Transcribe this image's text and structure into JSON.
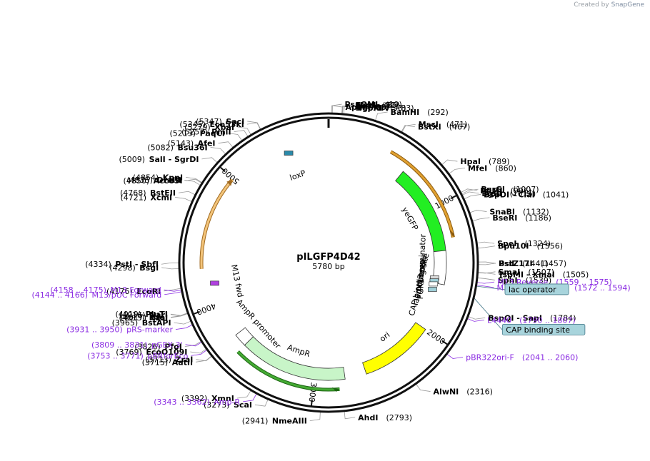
{
  "credit": {
    "prefix": "Created by",
    "brand": "SnapGene"
  },
  "plasmid": {
    "name": "pILGFP4D42",
    "length_label": "5780 bp",
    "length": 5780
  },
  "ticks": [
    {
      "pos": 1000,
      "label": "1000"
    },
    {
      "pos": 2000,
      "label": "2000"
    },
    {
      "pos": 3000,
      "label": "3000"
    },
    {
      "pos": 4000,
      "label": "4000"
    },
    {
      "pos": 5000,
      "label": "5000"
    }
  ],
  "features": [
    {
      "name": "yeGFP",
      "start": 630,
      "end": 1350,
      "strand": 1,
      "ring": "inner",
      "color": "#22ee22"
    },
    {
      "name": "PGK1 terminator",
      "start": 1350,
      "end": 1620,
      "strand": 1,
      "ring": "inner",
      "color": "#ffffff"
    },
    {
      "name": "M13 rev",
      "start": 1559,
      "end": 1575,
      "strand": -1,
      "ring": "inner",
      "color": "#d8d8d8"
    },
    {
      "name": "lac operator",
      "start": 1583,
      "end": 1599,
      "strand": 0,
      "ring": "inner",
      "color": "#9fcfd8"
    },
    {
      "name": "lac promoter",
      "start": 1607,
      "end": 1638,
      "strand": -1,
      "ring": "inner",
      "color": "#ffffff"
    },
    {
      "name": "CAP binding site",
      "start": 1653,
      "end": 1674,
      "strand": 0,
      "ring": "inner",
      "color": "#9fcfd8"
    },
    {
      "name": "ori",
      "start": 2000,
      "end": 2589,
      "strand": -1,
      "ring": "inner",
      "color": "#ffff00"
    },
    {
      "name": "AmpR",
      "start": 2760,
      "end": 3620,
      "strand": -1,
      "ring": "inner",
      "color": "#c8f5c8"
    },
    {
      "name": "AmpR promoter",
      "start": 3620,
      "end": 3725,
      "strand": -1,
      "ring": "inner",
      "color": "#ffffff"
    },
    {
      "name": "M13 fwd",
      "start": 4144,
      "end": 4161,
      "strand": 1,
      "ring": "inner",
      "color": "#b040e0"
    },
    {
      "name": "loxP",
      "start": 5450,
      "end": 5484,
      "strand": 1,
      "ring": "inner",
      "color": "#2a8aaa"
    }
  ],
  "arcs": [
    {
      "start": 470,
      "end": 1260,
      "strand": 1,
      "color": "#e0a030",
      "dark": "#8a5a10"
    },
    {
      "start": 2810,
      "end": 3620,
      "strand": -1,
      "color": "#44aa33",
      "dark": "#1e6614"
    },
    {
      "start": 4290,
      "end": 4990,
      "strand": 1,
      "color": "#f3c47a",
      "dark": "#a06a20"
    }
  ],
  "sites_right": [
    {
      "name": "PspOMI",
      "pos_label": "(19)",
      "side": "left",
      "pos": 19
    },
    {
      "name": "ApaI",
      "pos_label": "(23)",
      "pos": 23
    },
    {
      "name": "EagI",
      "pos_label": "(81)",
      "pos": 81
    },
    {
      "name": "NgoMIV",
      "pos_label": "(83)",
      "pos": 83
    },
    {
      "name": "NaeI",
      "pos_label": "(85)",
      "pos": 85
    },
    {
      "name": "PspXI",
      "pos_label": "(93)",
      "pos": 93
    },
    {
      "name": "BamHI",
      "pos_label": "(292)",
      "pos": 292
    },
    {
      "name": "BstXI",
      "pos_label": "(467)",
      "pos": 467
    },
    {
      "name": "MscI",
      "pos_label": "(471)",
      "pos": 471
    },
    {
      "name": "HpaI",
      "pos_label": "(789)",
      "pos": 789
    },
    {
      "name": "MfeI",
      "pos_label": "(860)",
      "pos": 860
    },
    {
      "name": "PflMI",
      "pos_label": "(996)",
      "pos": 996
    },
    {
      "name": "BsrGI",
      "pos_label": "(1007)",
      "pos": 1007
    },
    {
      "name": "BglII",
      "pos_label": "(1015)",
      "pos": 1015
    },
    {
      "name": "BspDI - ClaI",
      "pos_label": "(1041)",
      "pos": 1041
    },
    {
      "name": "SnaBI",
      "pos_label": "(1132)",
      "pos": 1132
    },
    {
      "name": "BseRI",
      "pos_label": "(1186)",
      "pos": 1186
    },
    {
      "name": "SpeI",
      "pos_label": "(1324)",
      "pos": 1324
    },
    {
      "name": "Bpu10I",
      "pos_label": "(1356)",
      "pos": 1356
    },
    {
      "name": "PsiI",
      "pos_label": "(1441)",
      "pos": 1441
    },
    {
      "name": "BstZ17I",
      "pos_label": "(1457)",
      "pos": 1457
    },
    {
      "name": "TspMI - XmaI",
      "pos_label": "(1505)",
      "pos": 1505
    },
    {
      "name": "SmaI",
      "pos_label": "(1507)",
      "pos": 1507
    },
    {
      "name": "SphI",
      "pos_label": "(1539)",
      "pos": 1539
    },
    {
      "name": "BspQI - SapI",
      "pos_label": "(1784)",
      "pos": 1784
    },
    {
      "name": "AlwNI",
      "pos_label": "(2316)",
      "pos": 2316
    },
    {
      "name": "AhdI",
      "pos_label": "(2793)",
      "pos": 2793
    }
  ],
  "sites_left": [
    {
      "name": "SacI",
      "pos_label": "(5347)",
      "pos": 5347
    },
    {
      "name": "Eco53kI",
      "pos_label": "(5345)",
      "pos": 5345
    },
    {
      "name": "XbaI",
      "pos_label": "(5279)",
      "pos": 5279
    },
    {
      "name": "PmlI",
      "pos_label": "(5257)",
      "pos": 5257
    },
    {
      "name": "PaqCI",
      "pos_label": "(5213)",
      "pos": 5213
    },
    {
      "name": "AfeI",
      "pos_label": "(5143)",
      "pos": 5143
    },
    {
      "name": "Bsu36I",
      "pos_label": "(5082)",
      "pos": 5082
    },
    {
      "name": "SalI - SgrDI",
      "pos_label": "(5009)",
      "pos": 5009
    },
    {
      "name": "KpnI",
      "pos_label": "(4854)",
      "pos": 4854
    },
    {
      "name": "Acc65I",
      "pos_label": "(4850)",
      "pos": 4850
    },
    {
      "name": "DraIII",
      "pos_label": "(4835)",
      "pos": 4835
    },
    {
      "name": "BstEII",
      "pos_label": "(4768)",
      "pos": 4768
    },
    {
      "name": "XcmI",
      "pos_label": "(4721)",
      "pos": 4721
    },
    {
      "name": "PstI - SbfI",
      "pos_label": "(4334)",
      "pos": 4334
    },
    {
      "name": "BsgI",
      "pos_label": "(4298)",
      "pos": 4298
    },
    {
      "name": "EcoRI",
      "pos_label": "(4176)",
      "pos": 4176
    },
    {
      "name": "PluTI",
      "pos_label": "(4019)",
      "pos": 4019
    },
    {
      "name": "SfoI",
      "pos_label": "(4017)",
      "pos": 4017
    },
    {
      "name": "NarI",
      "pos_label": "(4016)",
      "pos": 4016
    },
    {
      "name": "KasI",
      "pos_label": "(4015)",
      "pos": 4015
    },
    {
      "name": "BstAPI",
      "pos_label": "(3965)",
      "pos": 3965
    },
    {
      "name": "PfoI",
      "pos_label": "(3826)",
      "pos": 3826
    },
    {
      "name": "EcoO109I",
      "pos_label": "(3769)",
      "pos": 3769
    },
    {
      "name": "AatII",
      "pos_label": "(3715)",
      "pos": 3715
    },
    {
      "name": "ZraI",
      "pos_label": "(3713)",
      "pos": 3713
    },
    {
      "name": "XmnI",
      "pos_label": "(3392)",
      "pos": 3392
    },
    {
      "name": "ScaI",
      "pos_label": "(3273)",
      "pos": 3273
    },
    {
      "name": "NmeAIII",
      "pos_label": "(2941)",
      "pos": 2941
    }
  ],
  "primers": [
    {
      "name": "M13 Reverse",
      "range": "(1559 .. 1575)",
      "pos": 1567
    },
    {
      "name": "M13/pUC Reverse",
      "range": "(1572 .. 1594)",
      "pos": 1583
    },
    {
      "name": "L4440",
      "range": "(1790 .. 1807)",
      "pos": 1798
    },
    {
      "name": "pBR322ori-F",
      "range": "(2041 .. 2060)",
      "pos": 2050
    },
    {
      "name": "Amp-R",
      "range": "(3343 .. 3362)",
      "pos": 3352
    },
    {
      "name": "pBRforEco",
      "range": "(3753 .. 3771)",
      "pos": 3762
    },
    {
      "name": "pGEX 3'",
      "range": "(3809 .. 3831)",
      "pos": 3820
    },
    {
      "name": "pRS-marker",
      "range": "(3931 .. 3950)",
      "pos": 3940
    },
    {
      "name": "M13/pUC Forward",
      "range": "(4144 .. 4166)",
      "pos": 4155
    },
    {
      "name": "M13 Forward",
      "range": "(4158 .. 4175)",
      "pos": 4166
    }
  ],
  "boxed_labels": [
    {
      "name": "lac operator",
      "pos": 1591
    },
    {
      "name": "CAP binding site",
      "pos": 1663
    }
  ],
  "colors": {
    "backbone": "#111111",
    "primer": "#8a2be2",
    "line": "#999999",
    "box_fill": "#a8d4dc",
    "box_stroke": "#447788"
  }
}
